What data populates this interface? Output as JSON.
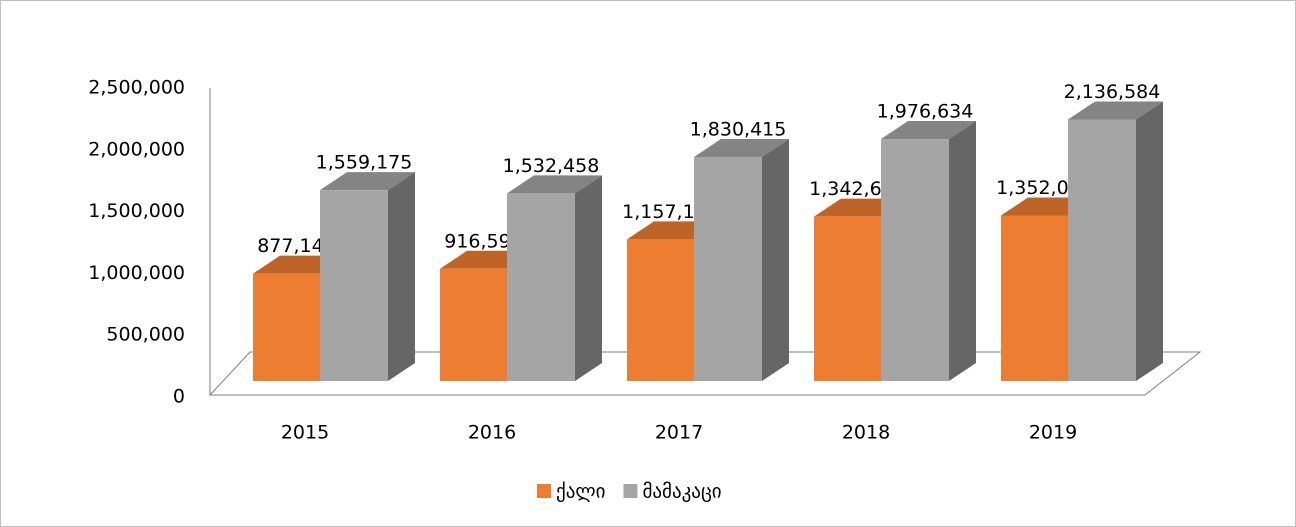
{
  "chart_data": {
    "type": "bar3d",
    "categories": [
      "2015",
      "2016",
      "2017",
      "2018",
      "2019"
    ],
    "series": [
      {
        "name": "ქალი",
        "color": "#ED7D31",
        "values": [
          877141,
          916594,
          1157169,
          1342606,
          1352085
        ],
        "value_labels": [
          "877,141",
          "916,594",
          "1,157,169",
          "1,342,606",
          "1,352,085"
        ]
      },
      {
        "name": "მამაკაცი",
        "color": "#A5A5A5",
        "values": [
          1559175,
          1532458,
          1830415,
          1976634,
          2136584
        ],
        "value_labels": [
          "1,559,175",
          "1,532,458",
          "1,830,415",
          "1,976,634",
          "2,136,584"
        ]
      }
    ],
    "ylim": [
      0,
      2500000
    ],
    "yticks": [
      0,
      {
        "value": 500000,
        "label": "500,000"
      },
      {
        "value": 1000000,
        "label": "1,000,000"
      },
      {
        "value": 1500000,
        "label": "1,500,000"
      },
      {
        "value": 2000000,
        "label": "2,000,000"
      },
      {
        "value": 2500000,
        "label": "2,500,000"
      }
    ],
    "legend": "bottom"
  }
}
